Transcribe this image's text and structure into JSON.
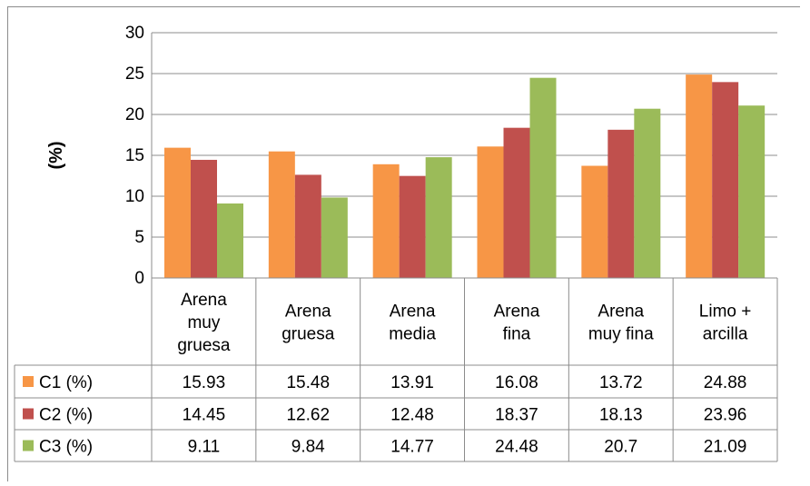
{
  "chart_data": {
    "type": "bar",
    "title": "",
    "xlabel": "",
    "ylabel": "(%)",
    "ylim": [
      0,
      30
    ],
    "yticks": [
      0,
      5,
      10,
      15,
      20,
      25,
      30
    ],
    "grid": true,
    "legend": "data-table-left",
    "categories": [
      [
        "Arena",
        "muy",
        "gruesa"
      ],
      [
        "Arena",
        "gruesa"
      ],
      [
        "Arena",
        "media"
      ],
      [
        "Arena",
        "fina"
      ],
      [
        "Arena",
        "muy fina"
      ],
      [
        "Limo +",
        "arcilla"
      ]
    ],
    "series": [
      {
        "name": "C1 (%)",
        "color": "#f79646",
        "values": [
          15.93,
          15.48,
          13.91,
          16.08,
          13.72,
          24.88
        ],
        "labels": [
          "15.93",
          "15.48",
          "13.91",
          "16.08",
          "13.72",
          "24.88"
        ]
      },
      {
        "name": "C2 (%)",
        "color": "#c0504d",
        "values": [
          14.45,
          12.62,
          12.48,
          18.37,
          18.13,
          23.96
        ],
        "labels": [
          "14.45",
          "12.62",
          "12.48",
          "18.37",
          "18.13",
          "23.96"
        ]
      },
      {
        "name": "C3 (%)",
        "color": "#9bbb59",
        "values": [
          9.11,
          9.84,
          14.77,
          24.48,
          20.7,
          21.09
        ],
        "labels": [
          "9.11",
          "9.84",
          "14.77",
          "24.48",
          "20.7",
          "21.09"
        ]
      }
    ]
  }
}
